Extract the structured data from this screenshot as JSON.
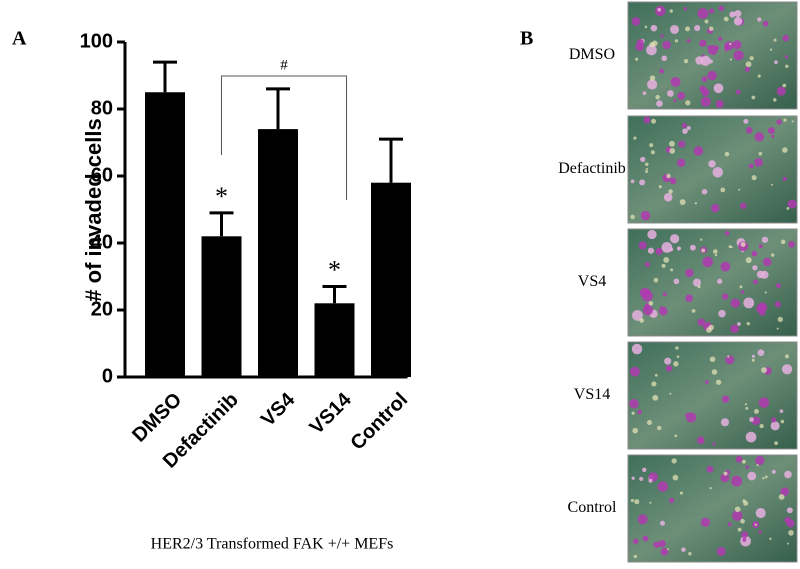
{
  "chart_data": {
    "type": "bar",
    "panel_label": "A",
    "ylabel": "# of invaded cells",
    "xlabel": "HER2/3 Transformed FAK +/+ MEFs",
    "categories": [
      "DMSO",
      "Defactinib",
      "VS4",
      "VS14",
      "Control"
    ],
    "values": [
      85,
      42,
      74,
      22,
      58
    ],
    "errors": [
      9,
      7,
      12,
      5,
      13
    ],
    "color": "#000000",
    "ylim": [
      0,
      100
    ],
    "yticks": [
      0,
      20,
      40,
      60,
      80,
      100
    ],
    "markers": [
      null,
      "*",
      null,
      "*",
      null
    ],
    "bracket_label": "#"
  },
  "panel_b": {
    "label": "B",
    "images": [
      "DMSO",
      "Defactinib",
      "VS4",
      "VS14",
      "Control"
    ]
  }
}
